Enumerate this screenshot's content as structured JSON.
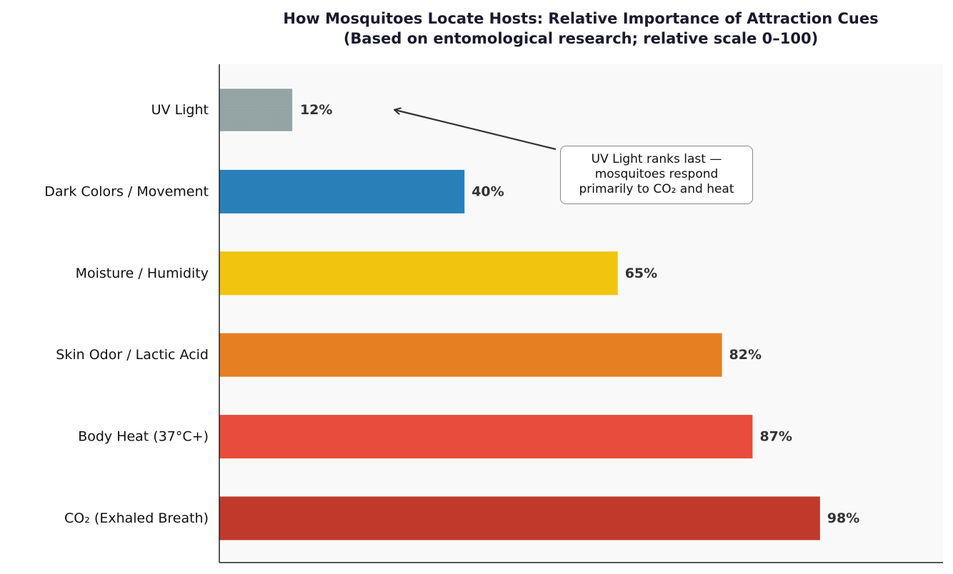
{
  "chart_data": {
    "type": "bar",
    "orientation": "horizontal",
    "title_line1": "How Mosquitoes Locate Hosts: Relative Importance of Attraction Cues",
    "title_line2": "(Based on entomological research; relative scale 0–100)",
    "xlabel": "",
    "ylabel": "",
    "xlim": [
      0,
      118
    ],
    "grid": false,
    "categories": [
      "UV Light",
      "Dark Colors / Movement",
      "Moisture / Humidity",
      "Skin Odor / Lactic Acid",
      "Body Heat (37°C+)",
      "CO₂ (Exhaled Breath)"
    ],
    "values": [
      12,
      40,
      65,
      82,
      87,
      98
    ],
    "value_labels": [
      "12%",
      "40%",
      "65%",
      "82%",
      "87%",
      "98%"
    ],
    "colors": [
      "#95a5a6",
      "#2980b9",
      "#f1c40f",
      "#e67e22",
      "#e74c3c",
      "#c0392b"
    ],
    "annotation": {
      "lines": [
        "UV Light ranks last —",
        "mosquitoes respond",
        "primarily to CO₂ and heat"
      ],
      "points_to": "UV Light"
    }
  }
}
